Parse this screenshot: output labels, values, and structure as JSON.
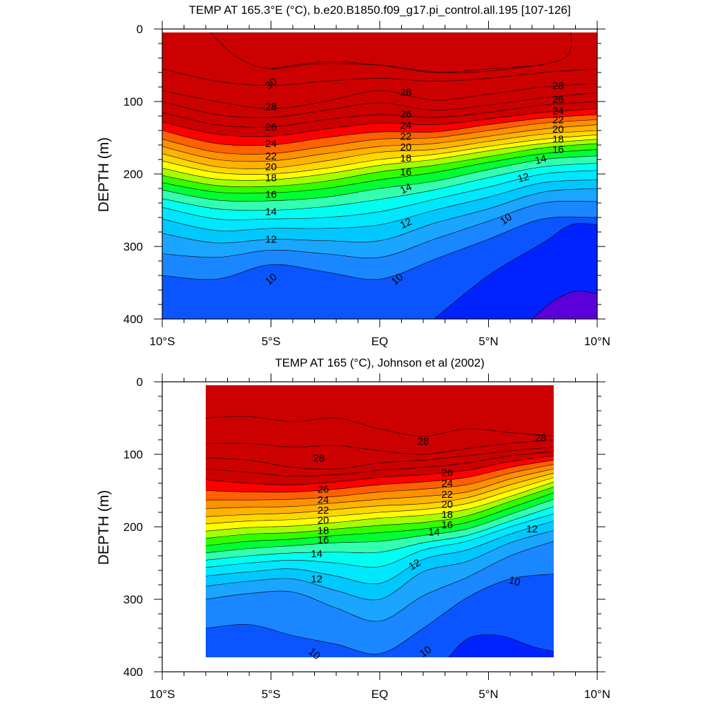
{
  "colors": {
    "levels": [
      "#5b00d8",
      "#0022ff",
      "#0a55ff",
      "#1a86ff",
      "#1aa6ff",
      "#00c8ff",
      "#00e6ff",
      "#00fff0",
      "#33ffb0",
      "#00ff33",
      "#33ff00",
      "#a6ff00",
      "#ffff00",
      "#ffd700",
      "#ffb300",
      "#ff9000",
      "#ff6000",
      "#ff0000",
      "#cc0000"
    ],
    "contour": "#000000",
    "background": "#ffffff"
  },
  "chart_data": [
    {
      "type": "contour",
      "title": "TEMP AT 165.3°E (°C), b.e20.B1850.f09_g17.pi_control.all.195 [107-126]",
      "xlabel": "",
      "ylabel": "DEPTH (m)",
      "xlim": [
        -10,
        10
      ],
      "ylim": [
        0,
        400
      ],
      "y_inverted": true,
      "data_x_range": [
        -10,
        10
      ],
      "data_y_range": [
        5,
        400
      ],
      "x_ticks": [
        {
          "value": -10,
          "label": "10°S"
        },
        {
          "value": -5,
          "label": "5°S"
        },
        {
          "value": 0,
          "label": "EQ"
        },
        {
          "value": 5,
          "label": "5°N"
        },
        {
          "value": 10,
          "label": "10°N"
        }
      ],
      "y_ticks": [
        {
          "value": 0,
          "label": "0"
        },
        {
          "value": 100,
          "label": "100"
        },
        {
          "value": 200,
          "label": "200"
        },
        {
          "value": 300,
          "label": "300"
        },
        {
          "value": 400,
          "label": "400"
        }
      ],
      "contour_levels": [
        10,
        11,
        12,
        13,
        14,
        15,
        16,
        17,
        18,
        19,
        20,
        21,
        22,
        23,
        24,
        25,
        26,
        27,
        28,
        29,
        30
      ],
      "isotherm_depths_x": [
        -10,
        -7.5,
        -5,
        -2.5,
        0,
        2.5,
        5,
        7.5,
        10
      ],
      "isotherm_depths": [
        {
          "level": 30,
          "depth": [
            null,
            null,
            55,
            45,
            50,
            60,
            55,
            50,
            null
          ]
        },
        {
          "level": 29,
          "depth": [
            55,
            72,
            78,
            72,
            68,
            72,
            68,
            60,
            55
          ]
        },
        {
          "level": 28,
          "depth": [
            85,
            100,
            110,
            100,
            85,
            98,
            90,
            80,
            75
          ]
        },
        {
          "level": 27,
          "depth": [
            100,
            118,
            122,
            112,
            102,
            112,
            105,
            95,
            88
          ]
        },
        {
          "level": 26,
          "depth": [
            115,
            132,
            135,
            125,
            118,
            122,
            115,
            105,
            100
          ]
        },
        {
          "level": 25,
          "depth": [
            128,
            145,
            148,
            138,
            130,
            132,
            124,
            115,
            110
          ]
        },
        {
          "level": 24,
          "depth": [
            140,
            158,
            160,
            150,
            142,
            142,
            132,
            123,
            118
          ]
        },
        {
          "level": 23,
          "depth": [
            152,
            170,
            172,
            162,
            152,
            150,
            140,
            130,
            125
          ]
        },
        {
          "level": 22,
          "depth": [
            162,
            180,
            182,
            172,
            162,
            158,
            148,
            138,
            132
          ]
        },
        {
          "level": 21,
          "depth": [
            172,
            190,
            192,
            182,
            170,
            166,
            155,
            145,
            140
          ]
        },
        {
          "level": 20,
          "depth": [
            182,
            198,
            200,
            192,
            180,
            173,
            162,
            152,
            146
          ]
        },
        {
          "level": 19,
          "depth": [
            192,
            207,
            208,
            200,
            188,
            180,
            168,
            158,
            152
          ]
        },
        {
          "level": 18,
          "depth": [
            202,
            216,
            217,
            210,
            197,
            188,
            176,
            164,
            158
          ]
        },
        {
          "level": 17,
          "depth": [
            212,
            225,
            226,
            220,
            208,
            198,
            184,
            172,
            166
          ]
        },
        {
          "level": 16,
          "depth": [
            222,
            236,
            237,
            232,
            220,
            210,
            194,
            180,
            175
          ]
        },
        {
          "level": 15,
          "depth": [
            234,
            248,
            250,
            245,
            235,
            222,
            205,
            190,
            185
          ]
        },
        {
          "level": 14,
          "depth": [
            246,
            262,
            262,
            260,
            252,
            235,
            218,
            200,
            195
          ]
        },
        {
          "level": 13,
          "depth": [
            262,
            278,
            275,
            275,
            270,
            250,
            232,
            212,
            208
          ]
        },
        {
          "level": 12,
          "depth": [
            282,
            295,
            290,
            292,
            292,
            268,
            248,
            225,
            220
          ]
        },
        {
          "level": 11,
          "depth": [
            310,
            315,
            305,
            310,
            315,
            290,
            265,
            240,
            238
          ]
        },
        {
          "level": 10,
          "depth": [
            340,
            345,
            325,
            335,
            345,
            318,
            290,
            262,
            260
          ]
        }
      ],
      "deep_cores": [
        {
          "level": 9,
          "x": [
            2.5,
            5,
            7.5,
            8.8,
            10
          ],
          "depth": [
            400,
            340,
            295,
            270,
            270
          ]
        },
        {
          "level": 8,
          "x": [
            7,
            8,
            9,
            10
          ],
          "depth": [
            400,
            375,
            362,
            365
          ]
        }
      ],
      "warm_pool_30": {
        "x": [
          -7.8,
          -6.5,
          -5,
          -3,
          0,
          3,
          6,
          8.5,
          8.8
        ],
        "depth": [
          5,
          40,
          55,
          48,
          50,
          60,
          55,
          40,
          5
        ]
      },
      "labels": [
        {
          "text": "30",
          "x": -5,
          "depth": 75,
          "rotation": -40
        },
        {
          "text": "28",
          "x": -5,
          "depth": 107
        },
        {
          "text": "28",
          "x": 1.2,
          "depth": 87
        },
        {
          "text": "28",
          "x": 8.2,
          "depth": 78
        },
        {
          "text": "26",
          "x": -5,
          "depth": 135
        },
        {
          "text": "26",
          "x": 1.2,
          "depth": 117
        },
        {
          "text": "26",
          "x": 8.2,
          "depth": 97
        },
        {
          "text": "24",
          "x": -5,
          "depth": 158
        },
        {
          "text": "24",
          "x": 1.2,
          "depth": 133
        },
        {
          "text": "24",
          "x": 8.2,
          "depth": 113
        },
        {
          "text": "22",
          "x": -5,
          "depth": 175
        },
        {
          "text": "22",
          "x": 1.2,
          "depth": 148
        },
        {
          "text": "22",
          "x": 8.2,
          "depth": 125
        },
        {
          "text": "20",
          "x": -5,
          "depth": 190
        },
        {
          "text": "20",
          "x": 1.2,
          "depth": 163
        },
        {
          "text": "20",
          "x": 8.2,
          "depth": 138
        },
        {
          "text": "18",
          "x": -5,
          "depth": 205
        },
        {
          "text": "18",
          "x": 1.2,
          "depth": 178
        },
        {
          "text": "18",
          "x": 8.2,
          "depth": 152
        },
        {
          "text": "16",
          "x": -5,
          "depth": 228
        },
        {
          "text": "16",
          "x": 1.2,
          "depth": 197
        },
        {
          "text": "16",
          "x": 8.2,
          "depth": 166
        },
        {
          "text": "14",
          "x": -5,
          "depth": 252
        },
        {
          "text": "14",
          "x": 1.2,
          "depth": 220,
          "rotation": -25
        },
        {
          "text": "14",
          "x": 7.4,
          "depth": 180,
          "rotation": -15
        },
        {
          "text": "12",
          "x": -5,
          "depth": 290
        },
        {
          "text": "12",
          "x": 1.2,
          "depth": 268,
          "rotation": -25
        },
        {
          "text": "12",
          "x": 6.6,
          "depth": 205,
          "rotation": -15
        },
        {
          "text": "10",
          "x": -5,
          "depth": 345,
          "rotation": -40
        },
        {
          "text": "10",
          "x": 0.8,
          "depth": 345,
          "rotation": -40
        },
        {
          "text": "10",
          "x": 5.8,
          "depth": 262,
          "rotation": -35
        }
      ]
    },
    {
      "type": "contour",
      "title": "TEMP AT 165 (°C), Johnson et al (2002)",
      "xlabel": "",
      "ylabel": "DEPTH (m)",
      "xlim": [
        -10,
        10
      ],
      "ylim": [
        0,
        400
      ],
      "y_inverted": true,
      "data_x_range": [
        -8,
        8
      ],
      "data_y_range": [
        5,
        380
      ],
      "x_ticks": [
        {
          "value": -10,
          "label": "10°S"
        },
        {
          "value": -5,
          "label": "5°S"
        },
        {
          "value": 0,
          "label": "EQ"
        },
        {
          "value": 5,
          "label": "5°N"
        },
        {
          "value": 10,
          "label": "10°N"
        }
      ],
      "y_ticks": [
        {
          "value": 0,
          "label": "0"
        },
        {
          "value": 100,
          "label": "100"
        },
        {
          "value": 200,
          "label": "200"
        },
        {
          "value": 300,
          "label": "300"
        },
        {
          "value": 400,
          "label": "400"
        }
      ],
      "contour_levels": [
        10,
        11,
        12,
        13,
        14,
        15,
        16,
        17,
        18,
        19,
        20,
        21,
        22,
        23,
        24,
        25,
        26,
        27,
        28,
        29
      ],
      "isotherm_depths_x": [
        -8,
        -6,
        -4,
        -2,
        0,
        2,
        4,
        6,
        8
      ],
      "isotherm_depths": [
        {
          "level": 29,
          "depth": [
            50,
            48,
            55,
            50,
            65,
            75,
            65,
            70,
            75
          ]
        },
        {
          "level": 28,
          "depth": [
            85,
            85,
            90,
            88,
            95,
            100,
            92,
            85,
            80
          ]
        },
        {
          "level": 27,
          "depth": [
            105,
            108,
            118,
            120,
            112,
            108,
            102,
            95,
            90
          ]
        },
        {
          "level": 26,
          "depth": [
            120,
            125,
            130,
            128,
            122,
            118,
            112,
            102,
            96
          ]
        },
        {
          "level": 25,
          "depth": [
            135,
            140,
            142,
            138,
            132,
            128,
            122,
            110,
            102
          ]
        },
        {
          "level": 24,
          "depth": [
            150,
            152,
            152,
            148,
            142,
            138,
            132,
            118,
            108
          ]
        },
        {
          "level": 23,
          "depth": [
            163,
            163,
            162,
            158,
            152,
            148,
            142,
            126,
            114
          ]
        },
        {
          "level": 22,
          "depth": [
            175,
            173,
            172,
            167,
            162,
            158,
            152,
            134,
            120
          ]
        },
        {
          "level": 21,
          "depth": [
            186,
            183,
            181,
            176,
            171,
            168,
            160,
            142,
            126
          ]
        },
        {
          "level": 20,
          "depth": [
            196,
            192,
            190,
            185,
            180,
            176,
            168,
            150,
            132
          ]
        },
        {
          "level": 19,
          "depth": [
            206,
            201,
            199,
            194,
            188,
            184,
            176,
            158,
            138
          ]
        },
        {
          "level": 18,
          "depth": [
            216,
            210,
            208,
            203,
            198,
            194,
            185,
            165,
            145
          ]
        },
        {
          "level": 17,
          "depth": [
            226,
            220,
            217,
            212,
            208,
            203,
            194,
            174,
            153
          ]
        },
        {
          "level": 16,
          "depth": [
            236,
            230,
            226,
            222,
            220,
            212,
            203,
            183,
            162
          ]
        },
        {
          "level": 15,
          "depth": [
            246,
            240,
            236,
            235,
            235,
            222,
            212,
            192,
            172
          ]
        },
        {
          "level": 14,
          "depth": [
            256,
            250,
            246,
            250,
            255,
            232,
            220,
            200,
            182
          ]
        },
        {
          "level": 13,
          "depth": [
            268,
            262,
            258,
            268,
            278,
            245,
            232,
            210,
            192
          ]
        },
        {
          "level": 12,
          "depth": [
            282,
            275,
            272,
            288,
            300,
            262,
            248,
            222,
            205
          ]
        },
        {
          "level": 11,
          "depth": [
            300,
            292,
            290,
            312,
            330,
            295,
            270,
            240,
            220
          ]
        },
        {
          "level": 10,
          "depth": [
            340,
            335,
            350,
            362,
            375,
            340,
            298,
            272,
            265
          ]
        }
      ],
      "deep_cores": [
        {
          "level": 9,
          "x": [
            2.8,
            4,
            5.5,
            7,
            8
          ],
          "depth": [
            395,
            355,
            350,
            365,
            372
          ]
        }
      ],
      "labels": [
        {
          "text": "28",
          "x": -2.8,
          "depth": 105
        },
        {
          "text": "28",
          "x": 2,
          "depth": 82
        },
        {
          "text": "28",
          "x": 7.4,
          "depth": 77
        },
        {
          "text": "26",
          "x": -2.6,
          "depth": 148
        },
        {
          "text": "26",
          "x": 3.1,
          "depth": 125
        },
        {
          "text": "24",
          "x": -2.6,
          "depth": 163
        },
        {
          "text": "24",
          "x": 3.1,
          "depth": 140
        },
        {
          "text": "22",
          "x": -2.6,
          "depth": 177
        },
        {
          "text": "22",
          "x": 3.1,
          "depth": 155
        },
        {
          "text": "20",
          "x": -2.6,
          "depth": 191
        },
        {
          "text": "20",
          "x": 3.1,
          "depth": 169
        },
        {
          "text": "18",
          "x": -2.6,
          "depth": 205
        },
        {
          "text": "18",
          "x": 3.1,
          "depth": 183
        },
        {
          "text": "16",
          "x": -2.6,
          "depth": 218
        },
        {
          "text": "16",
          "x": 3.1,
          "depth": 197
        },
        {
          "text": "14",
          "x": -2.9,
          "depth": 237
        },
        {
          "text": "14",
          "x": 2.5,
          "depth": 207
        },
        {
          "text": "12",
          "x": -2.9,
          "depth": 272
        },
        {
          "text": "12",
          "x": 1.6,
          "depth": 252,
          "rotation": -30
        },
        {
          "text": "12",
          "x": 7,
          "depth": 203
        },
        {
          "text": "10",
          "x": -3,
          "depth": 375,
          "rotation": 40
        },
        {
          "text": "10",
          "x": 2.1,
          "depth": 372,
          "rotation": -35
        },
        {
          "text": "10",
          "x": 6.2,
          "depth": 275,
          "rotation": 15
        }
      ]
    }
  ]
}
